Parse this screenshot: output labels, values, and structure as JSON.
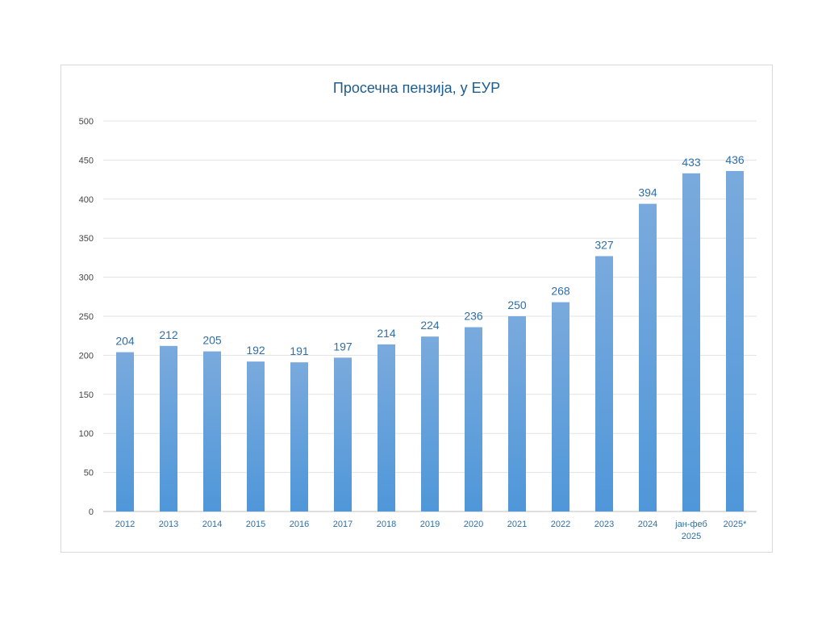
{
  "chart_data": {
    "type": "bar",
    "title": "Просечна пензија,  у ЕУР",
    "xlabel": "",
    "ylabel": "",
    "categories": [
      [
        "2012"
      ],
      [
        "2013"
      ],
      [
        "2014"
      ],
      [
        "2015"
      ],
      [
        "2016"
      ],
      [
        "2017"
      ],
      [
        "2018"
      ],
      [
        "2019"
      ],
      [
        "2020"
      ],
      [
        "2021"
      ],
      [
        "2022"
      ],
      [
        "2023"
      ],
      [
        "2024"
      ],
      [
        "јан-феб",
        "2025"
      ],
      [
        "2025*"
      ]
    ],
    "values": [
      204,
      212,
      205,
      192,
      191,
      197,
      214,
      224,
      236,
      250,
      268,
      327,
      394,
      433,
      436
    ],
    "ylim": [
      0,
      500
    ],
    "yticks": [
      0,
      50,
      100,
      150,
      200,
      250,
      300,
      350,
      400,
      450,
      500
    ],
    "grid": true,
    "legend": "none",
    "bar_color_top": "#7aaadd",
    "bar_color_bottom": "#4f97d9",
    "label_color": "#2f6ea6"
  }
}
